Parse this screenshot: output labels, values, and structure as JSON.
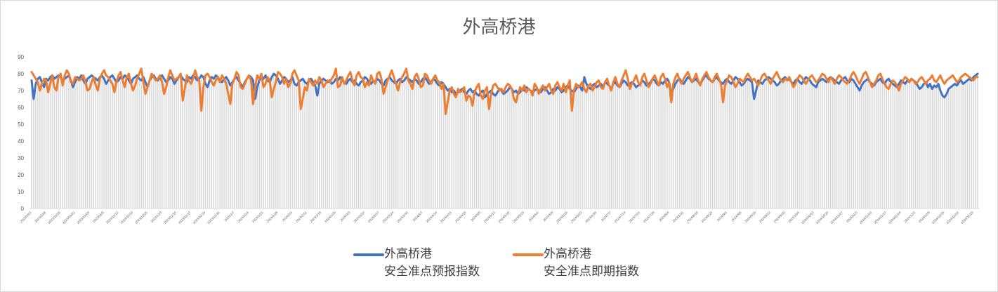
{
  "chart_data": {
    "type": "line",
    "title": "外高桥港",
    "frequency": "daily",
    "x_range": [
      "2023/10/1",
      "2024/12/31"
    ],
    "ylim": [
      0,
      90
    ],
    "y_ticks": [
      0,
      10,
      20,
      30,
      40,
      50,
      60,
      70,
      80,
      90
    ],
    "grid": false,
    "legend_position": "bottom",
    "background_columns": true,
    "x_tick_labels": [
      "2023/10/1",
      "2023/10/8",
      "2023/10/15",
      "2023/10/22",
      "2023/10/29",
      "2023/11/5",
      "2023/11/12",
      "2023/11/19",
      "2023/11/26",
      "2023/12/3",
      "2023/12/10",
      "2023/12/17",
      "2023/12/24",
      "2023/12/31",
      "2024/1/7",
      "2024/1/14",
      "2024/1/21",
      "2024/1/28",
      "2024/2/4",
      "2024/2/11",
      "2024/2/18",
      "2024/2/25",
      "2024/3/3",
      "2024/3/10",
      "2024/3/17",
      "2024/3/24",
      "2024/3/31",
      "2024/4/7",
      "2024/4/14",
      "2024/4/21",
      "2024/4/28",
      "2024/5/5",
      "2024/5/12",
      "2024/5/19",
      "2024/5/26",
      "2024/6/2",
      "2024/6/9",
      "2024/6/16",
      "2024/6/23",
      "2024/6/30",
      "2024/7/7",
      "2024/7/14",
      "2024/7/21",
      "2024/7/28",
      "2024/8/4",
      "2024/8/11",
      "2024/8/18",
      "2024/8/25",
      "2024/9/1",
      "2024/9/8",
      "2024/9/15",
      "2024/9/22",
      "2024/9/29",
      "2024/10/6",
      "2024/10/13",
      "2024/10/20",
      "2024/10/27",
      "2024/11/3",
      "2024/11/10",
      "2024/11/17",
      "2024/11/24",
      "2024/12/1",
      "2024/12/8",
      "2024/12/15",
      "2024/12/22",
      "2024/12/29"
    ],
    "series": [
      {
        "name": "外高桥港\n安全准点预报指数",
        "color": "#4472C4",
        "values": [
          76,
          65,
          74,
          77,
          78,
          75,
          72,
          77,
          76,
          78,
          79,
          77,
          78,
          79,
          78,
          76,
          77,
          78,
          79,
          76,
          72,
          75,
          78,
          77,
          79,
          76,
          74,
          77,
          78,
          79,
          78,
          77,
          76,
          78,
          79,
          77,
          74,
          76,
          78,
          79,
          77,
          75,
          76,
          78,
          77,
          79,
          78,
          76,
          74,
          77,
          78,
          79,
          77,
          76,
          78,
          75,
          72,
          76,
          78,
          79,
          77,
          76,
          78,
          79,
          77,
          75,
          76,
          78,
          77,
          74,
          76,
          78,
          79,
          77,
          76,
          75,
          78,
          77,
          79,
          78,
          76,
          77,
          79,
          78,
          74,
          72,
          76,
          78,
          77,
          79,
          78,
          76,
          75,
          77,
          78,
          76,
          73,
          75,
          77,
          78,
          76,
          74,
          72,
          75,
          77,
          79,
          78,
          76,
          65,
          72,
          76,
          78,
          77,
          79,
          76,
          75,
          78,
          80,
          79,
          77,
          74,
          76,
          78,
          77,
          75,
          76,
          78,
          74,
          73,
          75,
          76,
          77,
          75,
          74,
          76,
          77,
          75,
          73,
          67,
          74,
          76,
          77,
          76,
          75,
          76,
          74,
          75,
          77,
          76,
          78,
          76,
          75,
          74,
          76,
          77,
          75,
          76,
          74,
          73,
          75,
          76,
          78,
          77,
          75,
          74,
          76,
          75,
          77,
          76,
          74,
          73,
          76,
          77,
          78,
          76,
          75,
          74,
          76,
          77,
          75,
          76,
          78,
          77,
          76,
          75,
          77,
          76,
          74,
          75,
          77,
          78,
          76,
          74,
          75,
          77,
          76,
          74,
          73,
          75,
          74,
          72,
          70,
          71,
          69,
          70,
          68,
          69,
          70,
          71,
          69,
          68,
          70,
          71,
          69,
          70,
          68,
          67,
          69,
          70,
          66,
          68,
          69,
          70,
          68,
          67,
          69,
          71,
          70,
          68,
          69,
          70,
          72,
          71,
          69,
          70,
          68,
          69,
          71,
          70,
          72,
          71,
          70,
          69,
          70,
          71,
          70,
          69,
          71,
          72,
          70,
          68,
          69,
          71,
          70,
          72,
          71,
          69,
          70,
          72,
          73,
          71,
          70,
          69,
          71,
          73,
          72,
          70,
          78,
          74,
          72,
          71,
          73,
          74,
          72,
          73,
          74,
          72,
          75,
          74,
          73,
          71,
          74,
          75,
          73,
          72,
          74,
          76,
          75,
          73,
          74,
          75,
          74,
          72,
          73,
          74,
          76,
          75,
          73,
          74,
          75,
          77,
          76,
          74,
          73,
          75,
          74,
          76,
          77,
          75,
          68,
          71,
          74,
          76,
          77,
          75,
          74,
          76,
          78,
          77,
          75,
          76,
          77,
          75,
          74,
          76,
          78,
          79,
          77,
          76,
          75,
          77,
          78,
          76,
          75,
          74,
          76,
          77,
          75,
          74,
          76,
          78,
          77,
          75,
          73,
          74,
          76,
          77,
          76,
          75,
          65,
          70,
          76,
          75,
          74,
          76,
          77,
          78,
          77,
          76,
          75,
          73,
          74,
          76,
          77,
          78,
          76,
          77,
          75,
          74,
          76,
          77,
          75,
          74,
          76,
          78,
          77,
          76,
          74,
          73,
          72,
          75,
          76,
          77,
          76,
          75,
          77,
          78,
          77,
          76,
          75,
          74,
          76,
          77,
          78,
          76,
          75,
          77,
          76,
          74,
          72,
          70,
          73,
          75,
          76,
          77,
          75,
          74,
          73,
          75,
          76,
          77,
          75,
          74,
          76,
          77,
          75,
          74,
          73,
          72,
          74,
          76,
          75,
          74,
          76,
          75,
          77,
          76,
          75,
          73,
          71,
          72,
          74,
          75,
          72,
          74,
          71,
          73,
          72,
          74,
          70,
          67,
          66,
          68,
          71,
          72,
          73,
          74,
          73,
          75,
          76,
          74,
          75,
          76,
          77,
          76,
          78,
          79,
          80
        ]
      },
      {
        "name": "外高桥港\n安全准点即期指数",
        "color": "#ED7D31",
        "values": [
          81,
          79,
          77,
          75,
          70,
          74,
          77,
          76,
          69,
          74,
          79,
          72,
          70,
          78,
          80,
          73,
          79,
          82,
          80,
          75,
          74,
          78,
          77,
          76,
          77,
          79,
          75,
          70,
          71,
          75,
          78,
          73,
          70,
          77,
          80,
          82,
          79,
          78,
          76,
          74,
          69,
          75,
          79,
          81,
          76,
          72,
          78,
          80,
          74,
          70,
          73,
          77,
          80,
          83,
          75,
          68,
          72,
          76,
          80,
          78,
          76,
          77,
          79,
          75,
          68,
          72,
          78,
          82,
          79,
          76,
          77,
          78,
          80,
          64,
          71,
          79,
          76,
          74,
          77,
          82,
          78,
          76,
          58,
          72,
          79,
          80,
          78,
          75,
          73,
          76,
          78,
          75,
          79,
          77,
          74,
          68,
          62,
          74,
          77,
          81,
          79,
          72,
          71,
          74,
          77,
          79,
          76,
          62,
          72,
          79,
          77,
          80,
          72,
          74,
          78,
          76,
          66,
          71,
          75,
          81,
          80,
          78,
          74,
          77,
          72,
          74,
          80,
          82,
          79,
          76,
          59,
          65,
          72,
          70,
          77,
          75,
          73,
          76,
          74,
          78,
          76,
          72,
          74,
          76,
          75,
          77,
          79,
          83,
          72,
          73,
          78,
          74,
          76,
          79,
          81,
          76,
          73,
          79,
          81,
          78,
          77,
          72,
          75,
          73,
          79,
          76,
          74,
          80,
          81,
          77,
          68,
          72,
          76,
          79,
          82,
          78,
          74,
          70,
          75,
          78,
          80,
          83,
          76,
          74,
          71,
          78,
          80,
          77,
          72,
          73,
          80,
          79,
          76,
          74,
          77,
          79,
          76,
          75,
          71,
          74,
          56,
          63,
          70,
          72,
          68,
          66,
          71,
          69,
          70,
          72,
          64,
          67,
          66,
          61,
          69,
          72,
          74,
          67,
          65,
          70,
          72,
          59,
          68,
          73,
          74,
          72,
          70,
          71,
          69,
          72,
          74,
          73,
          71,
          65,
          63,
          68,
          72,
          70,
          73,
          69,
          71,
          70,
          67,
          74,
          72,
          68,
          71,
          73,
          70,
          72,
          74,
          70,
          68,
          73,
          75,
          72,
          70,
          74,
          69,
          73,
          76,
          58,
          70,
          74,
          72,
          73,
          75,
          71,
          69,
          73,
          74,
          70,
          72,
          75,
          76,
          72,
          71,
          75,
          77,
          73,
          70,
          75,
          78,
          74,
          72,
          76,
          79,
          82,
          77,
          71,
          74,
          76,
          79,
          75,
          73,
          78,
          80,
          76,
          72,
          74,
          77,
          79,
          76,
          73,
          78,
          80,
          77,
          72,
          75,
          63,
          74,
          78,
          80,
          76,
          74,
          77,
          79,
          81,
          78,
          75,
          77,
          80,
          76,
          73,
          77,
          79,
          81,
          78,
          76,
          75,
          78,
          80,
          77,
          74,
          63,
          73,
          76,
          79,
          78,
          75,
          72,
          74,
          77,
          76,
          75,
          78,
          80,
          78,
          76,
          77,
          75,
          73,
          76,
          79,
          80,
          78,
          76,
          74,
          77,
          79,
          81,
          78,
          76,
          75,
          77,
          76,
          78,
          75,
          72,
          74,
          77,
          79,
          78,
          76,
          74,
          76,
          78,
          79,
          77,
          75,
          76,
          78,
          80,
          79,
          77,
          75,
          78,
          76,
          74,
          77,
          79,
          78,
          76,
          75,
          74,
          76,
          79,
          81,
          79,
          76,
          74,
          77,
          80,
          81,
          78,
          75,
          72,
          74,
          76,
          79,
          80,
          77,
          74,
          72,
          71,
          74,
          76,
          75,
          73,
          70,
          74,
          76,
          78,
          77,
          75,
          77,
          76,
          74,
          75,
          77,
          78,
          76,
          74,
          76,
          77,
          79,
          76,
          75,
          77,
          79,
          76,
          74,
          76,
          77,
          78,
          79,
          77,
          75,
          76,
          78,
          79,
          80,
          79,
          78,
          77,
          76,
          78,
          78
        ]
      }
    ]
  }
}
